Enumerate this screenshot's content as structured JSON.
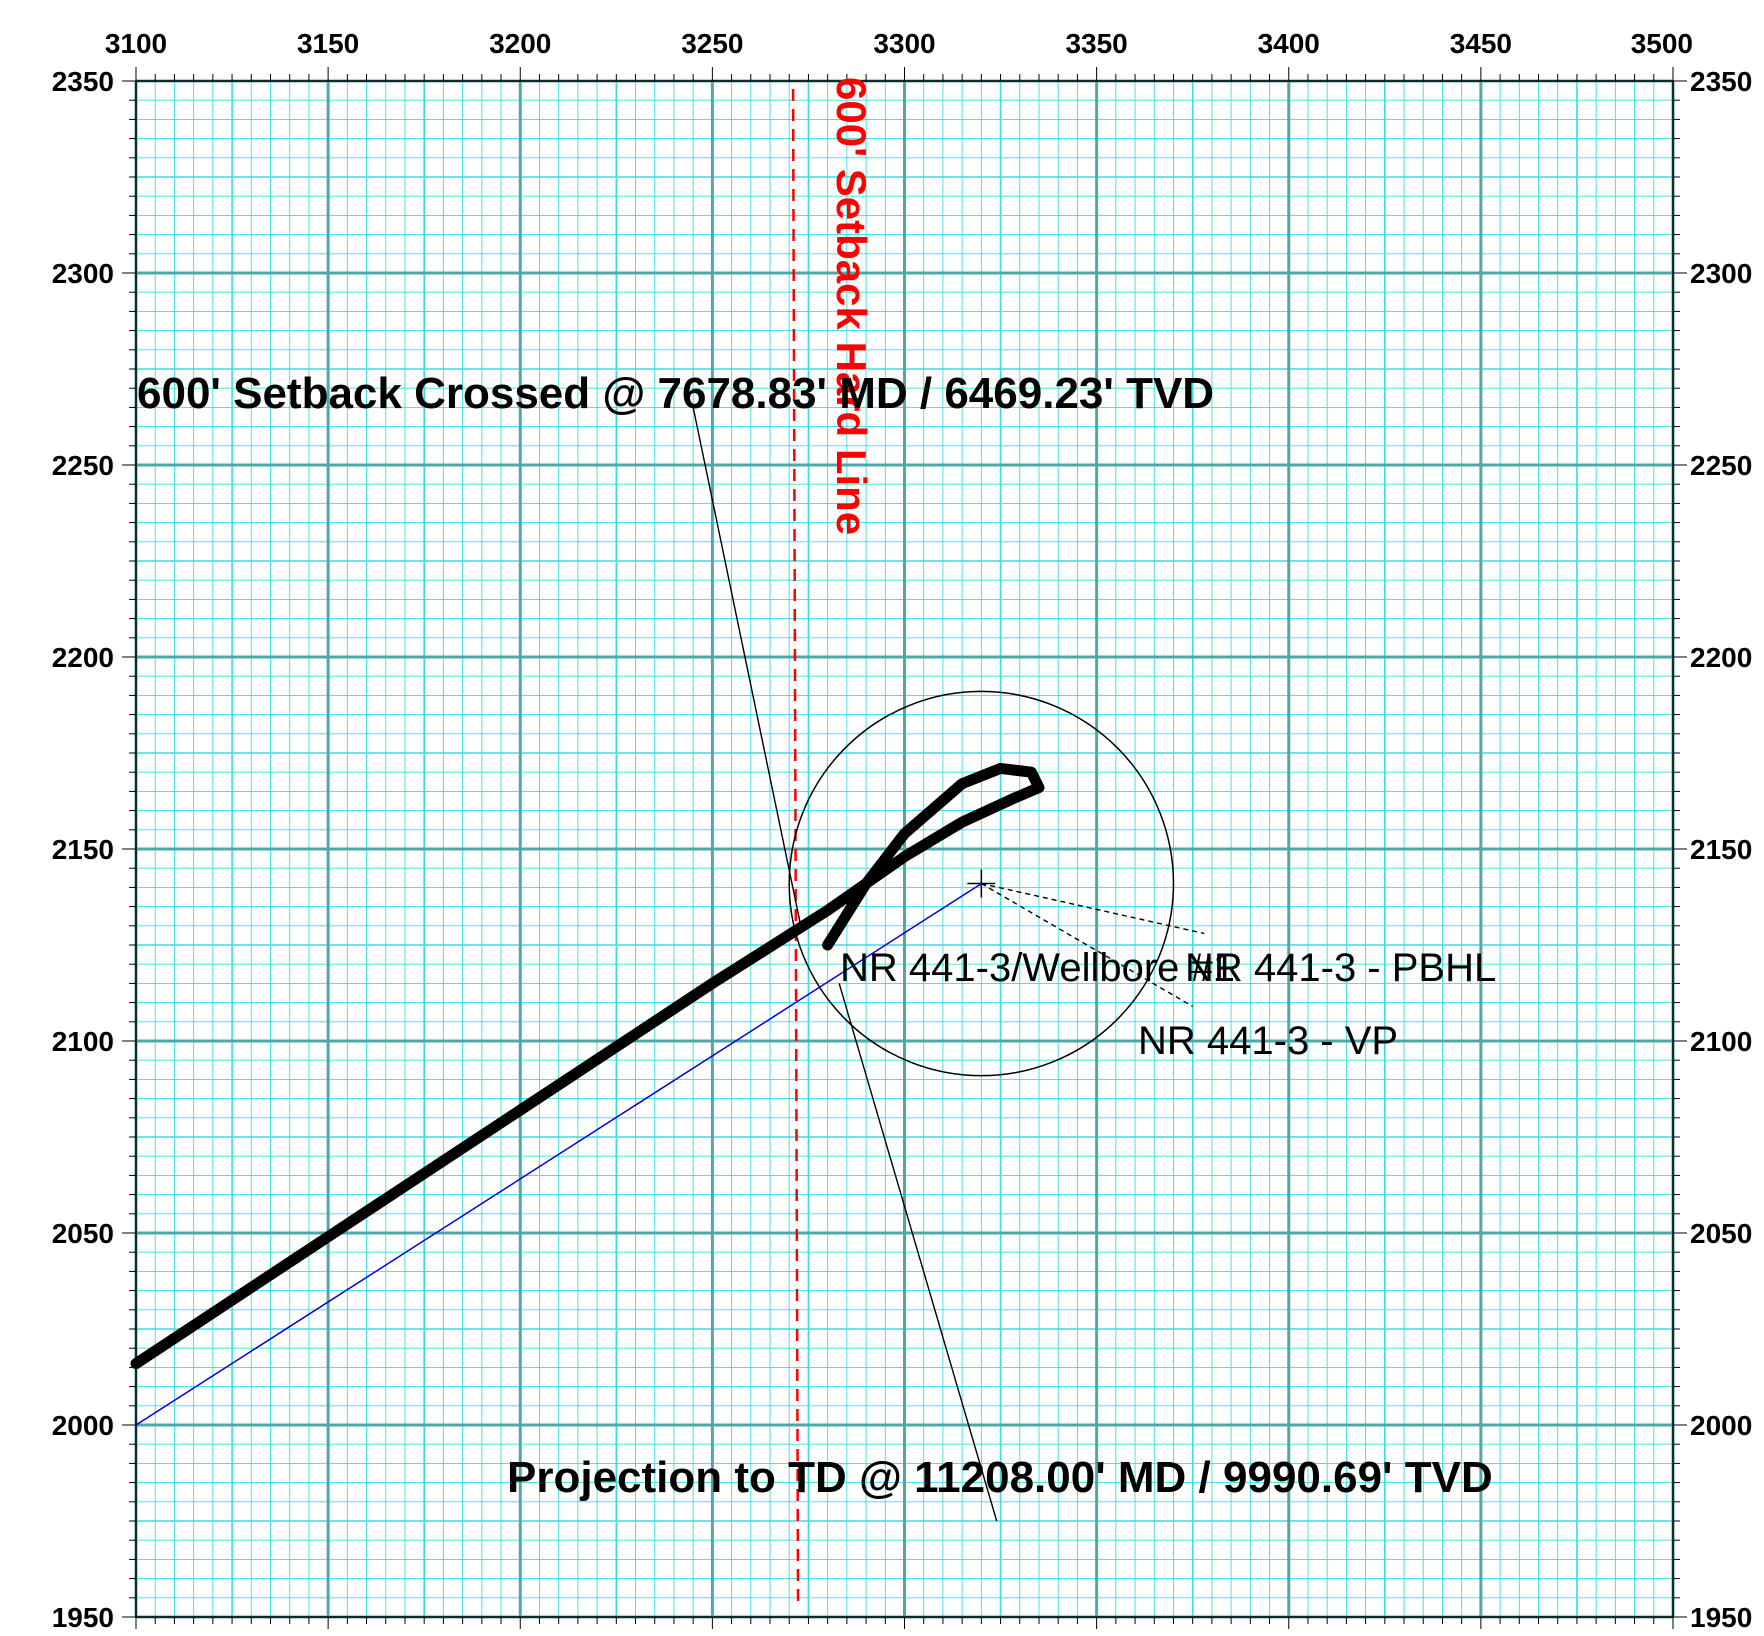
{
  "chart_data": {
    "type": "line",
    "xlim": [
      3100,
      3500
    ],
    "ylim": [
      1950,
      2350
    ],
    "x_ticks": [
      "3100",
      "3150",
      "3200",
      "3250",
      "3300",
      "3350",
      "3400",
      "3450",
      "3500"
    ],
    "y_ticks": [
      "2350",
      "2300",
      "2250",
      "2200",
      "2150",
      "2100",
      "2050",
      "2000",
      "1950"
    ],
    "grid": true,
    "colors": {
      "grid_major": "#4fa8a8",
      "grid_minor": "#33e0e0",
      "actual_path": "#000000",
      "plan_path": "#0000dd",
      "setback": "#ff0000"
    },
    "setback_line": {
      "x": 3271,
      "label": "600' Setback Hard Line"
    },
    "target": {
      "center": [
        3320,
        2141
      ],
      "radius": 50
    },
    "actual_path": {
      "points": [
        [
          3100,
          2016
        ],
        [
          3150,
          2049
        ],
        [
          3200,
          2082
        ],
        [
          3250,
          2115
        ],
        [
          3280,
          2134
        ],
        [
          3300,
          2148
        ],
        [
          3315,
          2157
        ],
        [
          3328,
          2163
        ],
        [
          3335,
          2166
        ],
        [
          3333,
          2170
        ],
        [
          3325,
          2171
        ],
        [
          3315,
          2167
        ],
        [
          3300,
          2154
        ],
        [
          3290,
          2141
        ],
        [
          3280,
          2125
        ]
      ]
    },
    "plan_path": {
      "points": [
        [
          3100,
          2000
        ],
        [
          3320,
          2141
        ]
      ]
    },
    "leaders": [
      {
        "points": [
          [
            3245,
            2265
          ],
          [
            3273,
            2130
          ]
        ],
        "style": "solid"
      },
      {
        "points": [
          [
            3283,
            2115
          ],
          [
            3324,
            1975
          ]
        ],
        "style": "solid"
      },
      {
        "points": [
          [
            3320,
            2141
          ],
          [
            3378,
            2128
          ]
        ],
        "style": "dashed"
      },
      {
        "points": [
          [
            3320,
            2141
          ],
          [
            3375,
            2109
          ]
        ],
        "style": "dashed"
      }
    ],
    "annotations": {
      "setback_crossed": "600' Setback Crossed @ 7678.83' MD / 6469.23' TVD",
      "projection": "Projection to TD @ 11208.00' MD / 9990.69' TVD",
      "wellbore": "NR 441-3/Wellbore #1",
      "pbhl": "NR 441-3 - PBHL",
      "vp": "NR 441-3 - VP"
    }
  }
}
